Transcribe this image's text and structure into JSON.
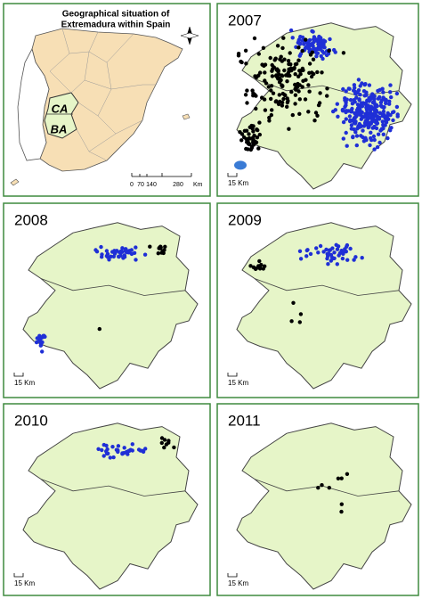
{
  "map": {
    "inset": {
      "title_lines": [
        "Geographical situation of",
        "Extremadura within Spain"
      ],
      "regions": [
        "CA",
        "BA"
      ],
      "scale": {
        "ticks": [
          "0",
          "70",
          "140",
          "280"
        ],
        "unit": "Km"
      }
    },
    "panels": [
      {
        "year": "2007",
        "scale": "15 Km"
      },
      {
        "year": "2008",
        "scale": "15 Km"
      },
      {
        "year": "2009",
        "scale": "15 Km"
      },
      {
        "year": "2010",
        "scale": "15 Km"
      },
      {
        "year": "2011",
        "scale": "15 Km"
      }
    ]
  }
}
